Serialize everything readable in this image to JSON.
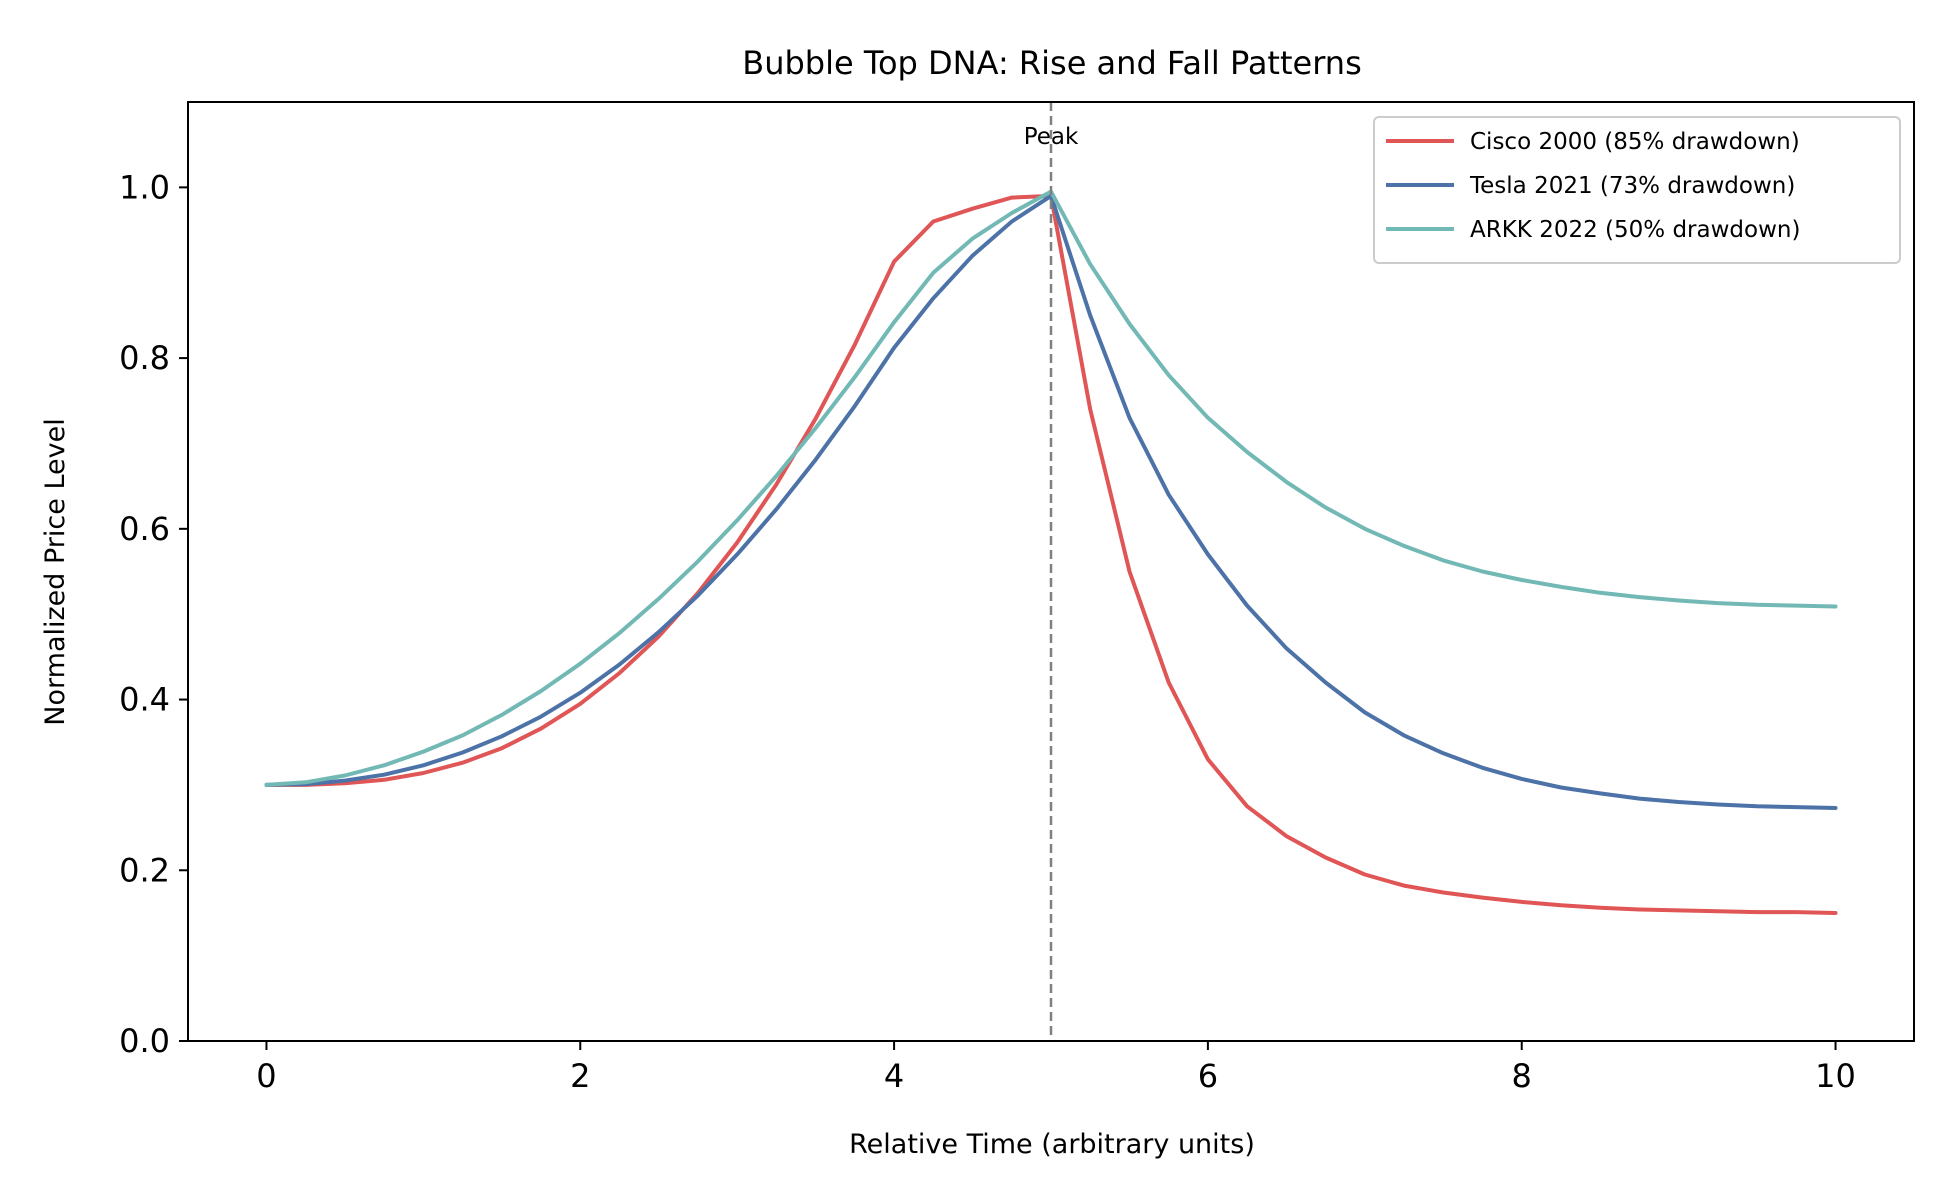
{
  "chart_data": {
    "type": "line",
    "title": "Bubble Top DNA: Rise and Fall Patterns",
    "xlabel": "Relative Time (arbitrary units)",
    "ylabel": "Normalized Price Level",
    "xlim": [
      -0.5,
      10.5
    ],
    "ylim": [
      0,
      1.1
    ],
    "xticks": [
      0,
      2,
      4,
      6,
      8,
      10
    ],
    "xtick_labels": [
      "0",
      "2",
      "4",
      "6",
      "8",
      "10"
    ],
    "yticks": [
      0,
      0.2,
      0.4,
      0.6,
      0.8,
      1.0
    ],
    "ytick_labels": [
      "0.0",
      "0.2",
      "0.4",
      "0.6",
      "0.8",
      "1.0"
    ],
    "grid": false,
    "legend_position": "top-right",
    "annotations": [
      {
        "type": "vline",
        "x": 5,
        "label": "Peak",
        "color": "#808080",
        "style": "dashed"
      }
    ],
    "x": [
      0,
      0.25,
      0.5,
      0.75,
      1,
      1.25,
      1.5,
      1.75,
      2,
      2.25,
      2.5,
      2.75,
      3,
      3.25,
      3.5,
      3.75,
      4,
      4.25,
      4.5,
      4.75,
      5,
      5.25,
      5.5,
      5.75,
      6,
      6.25,
      6.5,
      6.75,
      7,
      7.25,
      7.5,
      7.75,
      8,
      8.25,
      8.5,
      8.75,
      9,
      9.25,
      9.5,
      9.75,
      10
    ],
    "series": [
      {
        "name": "Cisco 2000 (85% drawdown)",
        "color": "#e05555",
        "values": [
          0.3,
          0.3,
          0.302,
          0.306,
          0.314,
          0.326,
          0.343,
          0.366,
          0.395,
          0.431,
          0.474,
          0.525,
          0.584,
          0.652,
          0.729,
          0.816,
          0.913,
          0.96,
          0.975,
          0.988,
          0.99,
          0.74,
          0.55,
          0.42,
          0.33,
          0.275,
          0.24,
          0.215,
          0.195,
          0.182,
          0.174,
          0.168,
          0.163,
          0.159,
          0.156,
          0.154,
          0.153,
          0.152,
          0.151,
          0.151,
          0.15
        ]
      },
      {
        "name": "Tesla 2021 (73% drawdown)",
        "color": "#4c72a8",
        "values": [
          0.3,
          0.301,
          0.305,
          0.312,
          0.323,
          0.338,
          0.357,
          0.38,
          0.408,
          0.441,
          0.479,
          0.522,
          0.57,
          0.623,
          0.681,
          0.744,
          0.812,
          0.87,
          0.92,
          0.96,
          0.99,
          0.85,
          0.73,
          0.64,
          0.57,
          0.51,
          0.46,
          0.42,
          0.385,
          0.358,
          0.337,
          0.32,
          0.307,
          0.297,
          0.29,
          0.284,
          0.28,
          0.277,
          0.275,
          0.274,
          0.273
        ]
      },
      {
        "name": "ARKK 2022 (50% drawdown)",
        "color": "#72b8b5",
        "values": [
          0.3,
          0.303,
          0.311,
          0.323,
          0.339,
          0.358,
          0.382,
          0.41,
          0.442,
          0.478,
          0.518,
          0.562,
          0.61,
          0.662,
          0.718,
          0.778,
          0.842,
          0.9,
          0.94,
          0.97,
          0.995,
          0.91,
          0.84,
          0.78,
          0.73,
          0.69,
          0.655,
          0.625,
          0.6,
          0.58,
          0.563,
          0.55,
          0.54,
          0.532,
          0.525,
          0.52,
          0.516,
          0.513,
          0.511,
          0.51,
          0.509
        ]
      }
    ]
  }
}
